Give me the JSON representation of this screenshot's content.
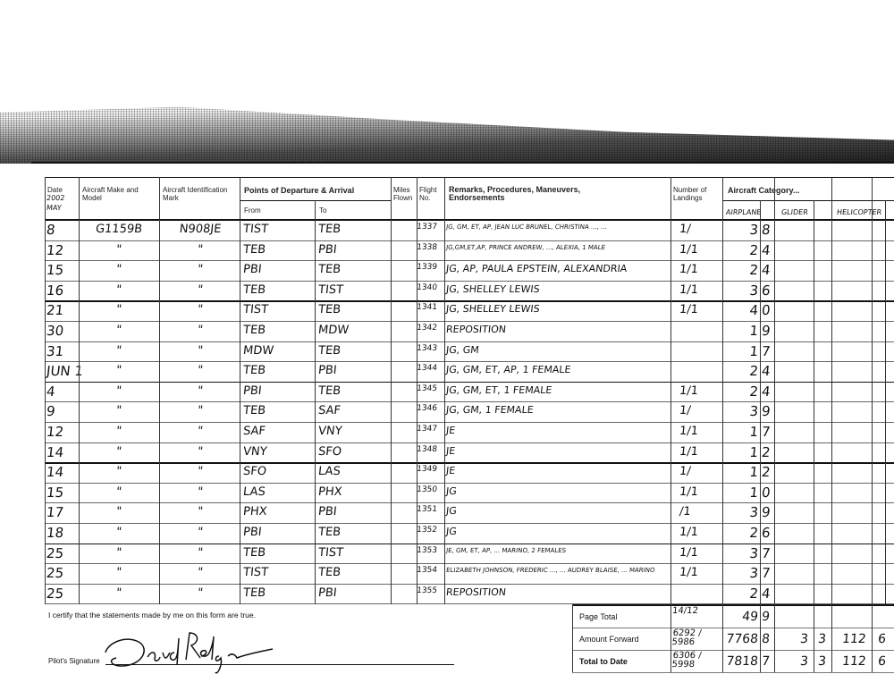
{
  "header": {
    "date": "Date",
    "date_note": "2002",
    "month": "MAY",
    "make": "Aircraft Make and Model",
    "ident": "Aircraft Identification Mark",
    "points": "Points of Departure & Arrival",
    "from": "From",
    "to": "To",
    "miles": "Miles Flown",
    "flight": "Flight No.",
    "remarks": "Remarks, Procedures, Maneuvers, Endorsements",
    "landings": "Number of Landings",
    "category": "Aircraft Category...",
    "cat_airplane": "AIRPLANE",
    "cat_glider": "GLIDER",
    "cat_helicopter": "HELICOPTER"
  },
  "rows": [
    {
      "date": "8",
      "make": "G1159B",
      "ident": "N908JE",
      "from": "TIST",
      "to": "TEB",
      "flight": "1337",
      "remarks": "JG, GM, ET, AP, JEAN LUC BRUNEL, CHRISTINA ..., ...",
      "landings": "1/",
      "hours": "3",
      "tenths": "8"
    },
    {
      "date": "12",
      "make": "\"",
      "ident": "\"",
      "from": "TEB",
      "to": "PBI",
      "flight": "1338",
      "remarks": "JG,GM,ET,AP, PRINCE ANDREW, ..., ALEXIA, 1 MALE",
      "landings": "1/1",
      "hours": "2",
      "tenths": "4"
    },
    {
      "date": "15",
      "make": "\"",
      "ident": "\"",
      "from": "PBI",
      "to": "TEB",
      "flight": "1339",
      "remarks": "JG, AP, PAULA EPSTEIN, ALEXANDRIA",
      "landings": "1/1",
      "hours": "2",
      "tenths": "4"
    },
    {
      "date": "16",
      "make": "\"",
      "ident": "\"",
      "from": "TEB",
      "to": "TIST",
      "flight": "1340",
      "remarks": "JG, SHELLEY LEWIS",
      "landings": "1/1",
      "hours": "3",
      "tenths": "6"
    },
    {
      "date": "21",
      "make": "\"",
      "ident": "\"",
      "from": "TIST",
      "to": "TEB",
      "flight": "1341",
      "remarks": "JG, SHELLEY LEWIS",
      "landings": "1/1",
      "hours": "4",
      "tenths": "0"
    },
    {
      "date": "30",
      "make": "\"",
      "ident": "\"",
      "from": "TEB",
      "to": "MDW",
      "flight": "1342",
      "remarks": "REPOSITION",
      "landings": "",
      "hours": "1",
      "tenths": "9"
    },
    {
      "date": "31",
      "make": "\"",
      "ident": "\"",
      "from": "MDW",
      "to": "TEB",
      "flight": "1343",
      "remarks": "JG, GM",
      "landings": "",
      "hours": "1",
      "tenths": "7"
    },
    {
      "date": "JUN 1",
      "make": "\"",
      "ident": "\"",
      "from": "TEB",
      "to": "PBI",
      "flight": "1344",
      "remarks": "JG, GM, ET, AP, 1 FEMALE",
      "landings": "",
      "hours": "2",
      "tenths": "4"
    },
    {
      "date": "4",
      "make": "\"",
      "ident": "\"",
      "from": "PBI",
      "to": "TEB",
      "flight": "1345",
      "remarks": "JG, GM, ET, 1 FEMALE",
      "landings": "1/1",
      "hours": "2",
      "tenths": "4"
    },
    {
      "date": "9",
      "make": "\"",
      "ident": "\"",
      "from": "TEB",
      "to": "SAF",
      "flight": "1346",
      "remarks": "JG, GM, 1 FEMALE",
      "landings": "1/",
      "hours": "3",
      "tenths": "9"
    },
    {
      "date": "12",
      "make": "\"",
      "ident": "\"",
      "from": "SAF",
      "to": "VNY",
      "flight": "1347",
      "remarks": "JE",
      "landings": "1/1",
      "hours": "1",
      "tenths": "7"
    },
    {
      "date": "14",
      "make": "\"",
      "ident": "\"",
      "from": "VNY",
      "to": "SFO",
      "flight": "1348",
      "remarks": "JE",
      "landings": "1/1",
      "hours": "1",
      "tenths": "2"
    },
    {
      "date": "14",
      "make": "\"",
      "ident": "\"",
      "from": "SFO",
      "to": "LAS",
      "flight": "1349",
      "remarks": "JE",
      "landings": "1/",
      "hours": "1",
      "tenths": "2"
    },
    {
      "date": "15",
      "make": "\"",
      "ident": "\"",
      "from": "LAS",
      "to": "PHX",
      "flight": "1350",
      "remarks": "JG",
      "landings": "1/1",
      "hours": "1",
      "tenths": "0"
    },
    {
      "date": "17",
      "make": "\"",
      "ident": "\"",
      "from": "PHX",
      "to": "PBI",
      "flight": "1351",
      "remarks": "JG",
      "landings": "/1",
      "hours": "3",
      "tenths": "9"
    },
    {
      "date": "18",
      "make": "\"",
      "ident": "\"",
      "from": "PBI",
      "to": "TEB",
      "flight": "1352",
      "remarks": "JG",
      "landings": "1/1",
      "hours": "2",
      "tenths": "6"
    },
    {
      "date": "25",
      "make": "\"",
      "ident": "\"",
      "from": "TEB",
      "to": "TIST",
      "flight": "1353",
      "remarks": "JE, GM, ET, AP, ... MARINO, 2 FEMALES",
      "landings": "1/1",
      "hours": "3",
      "tenths": "7"
    },
    {
      "date": "25",
      "make": "\"",
      "ident": "\"",
      "from": "TIST",
      "to": "TEB",
      "flight": "1354",
      "remarks": "ELIZABETH JOHNSON, FREDERIC ..., ... AUDREY BLAISE, ... MARINO",
      "landings": "1/1",
      "hours": "3",
      "tenths": "7"
    },
    {
      "date": "25",
      "make": "\"",
      "ident": "\"",
      "from": "TEB",
      "to": "PBI",
      "flight": "1355",
      "remarks": "REPOSITION",
      "landings": "",
      "hours": "2",
      "tenths": "4"
    }
  ],
  "totals": {
    "certify": "I certify that the statements made by me on this form are true.",
    "signature_label": "Pilot's Signature",
    "signature": "David Rodgers",
    "page_total": {
      "label": "Page Total",
      "landings": "14/12",
      "hours": "49",
      "tenths": "9"
    },
    "amount_forward": {
      "label": "Amount Forward",
      "landings": "6292 / 5986",
      "hours": "7768",
      "tenths": "8",
      "glider": "3",
      "glider_t": "3",
      "heli": "112",
      "heli_t": "6"
    },
    "total_to_date": {
      "label": "Total to Date",
      "landings": "6306 / 5998",
      "hours": "7818",
      "tenths": "7",
      "glider": "3",
      "glider_t": "3",
      "heli": "112",
      "heli_t": "6"
    }
  }
}
